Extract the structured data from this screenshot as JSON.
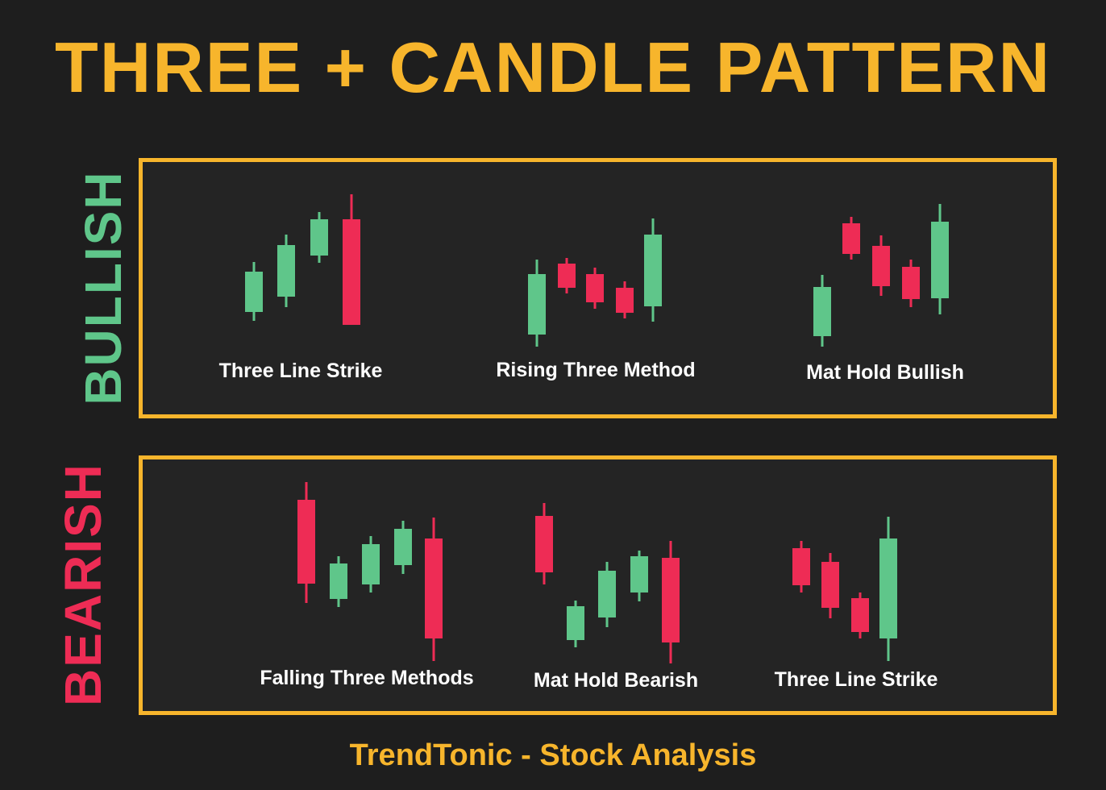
{
  "title": "THREE + CANDLE PATTERN",
  "footer": "TrendTonic - Stock Analysis",
  "colors": {
    "background": "#1e1e1e",
    "panel_background": "#242424",
    "accent": "#f7b52c",
    "bullish": "#5fc68a",
    "bearish": "#ee2c55",
    "label_text": "#ffffff"
  },
  "sections": {
    "bullish": {
      "label": "BULLISH",
      "patterns": [
        {
          "name": "Three Line Strike"
        },
        {
          "name": "Rising Three Method"
        },
        {
          "name": "Mat Hold Bullish"
        }
      ]
    },
    "bearish": {
      "label": "BEARISH",
      "patterns": [
        {
          "name": "Falling Three Methods"
        },
        {
          "name": "Mat Hold Bearish"
        },
        {
          "name": "Three Line Strike"
        }
      ]
    }
  }
}
